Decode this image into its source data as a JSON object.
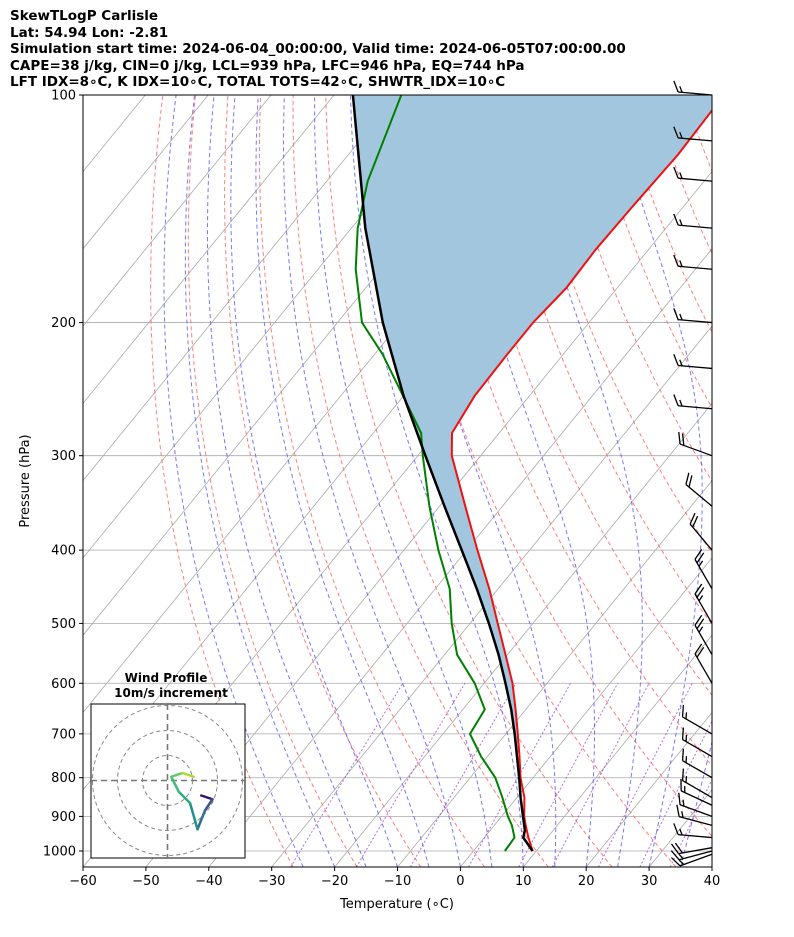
{
  "header": {
    "title": "SkewTLogP Carlisle",
    "location": "Lat: 54.94   Lon: -2.81",
    "times": "Simulation start time: 2024-06-04_00:00:00, Valid time: 2024-06-05T07:00:00.00",
    "indices1": "CAPE=38 j/kg, CIN=0 j/kg, LCL=939 hPa, LFC=946 hPa, EQ=744 hPa",
    "indices2": "LFT IDX=8∘C, K IDX=10∘C, TOTAL TOTS=42∘C, SHWTR_IDX=10∘C"
  },
  "hodograph": {
    "title": "Wind Profile",
    "subtitle": "10m/s increment"
  },
  "colors": {
    "temperature": "#ee1111",
    "dewpoint": "#008000",
    "parcel": "#000000",
    "cape_fill": "#a3c6df",
    "dry_adiabat": "#ff6666",
    "moist_adiabat": "#5555ff",
    "mixing_ratio": "#9933cc",
    "isotherm": "#aaaaaa"
  },
  "chart_data": {
    "type": "line",
    "subtype": "skew-T log-P diagram",
    "xlabel": "Temperature (∘C)",
    "ylabel": "Pressure (hPa)",
    "xlim": [
      -60,
      40
    ],
    "ylim": [
      1050,
      100
    ],
    "y_scale": "log",
    "grid": true,
    "x_ticks": [
      "−60",
      "−50",
      "−40",
      "−30",
      "−20",
      "−10",
      "0",
      "10",
      "20",
      "30",
      "40"
    ],
    "y_ticks": [
      "100",
      "200",
      "300",
      "400",
      "500",
      "600",
      "700",
      "800",
      "900",
      "1000"
    ],
    "series": [
      {
        "key": "temperature",
        "pressure": [
          1000,
          960,
          925,
          900,
          850,
          800,
          750,
          700,
          650,
          600,
          550,
          500,
          450,
          400,
          350,
          300,
          280,
          250,
          220,
          200,
          180,
          160,
          140,
          120,
          110,
          100
        ],
        "values": [
          9.4,
          7.0,
          5.0,
          3.6,
          1.2,
          -2.0,
          -4.9,
          -8.1,
          -11.6,
          -15.5,
          -20.3,
          -25.6,
          -31.4,
          -38.3,
          -45.9,
          -54.6,
          -57.5,
          -58.7,
          -58.9,
          -58.9,
          -58.1,
          -58.4,
          -58.1,
          -57.6,
          -57.8,
          -58.0
        ]
      },
      {
        "key": "dewpoint",
        "pressure": [
          1000,
          960,
          925,
          900,
          850,
          800,
          750,
          700,
          650,
          600,
          550,
          500,
          450,
          400,
          350,
          300,
          280,
          250,
          220,
          200,
          170,
          150,
          130,
          100
        ],
        "values": [
          5.0,
          4.8,
          2.8,
          1.0,
          -2.3,
          -6.0,
          -11.0,
          -15.7,
          -16.5,
          -21.5,
          -28.0,
          -32.9,
          -37.7,
          -44.5,
          -51.6,
          -59.2,
          -62.4,
          -70.1,
          -78.8,
          -86.1,
          -94.0,
          -99.0,
          -103.5,
          -109.3
        ]
      },
      {
        "key": "parcel",
        "pressure": [
          1000,
          960,
          939,
          900,
          850,
          800,
          750,
          700,
          650,
          600,
          550,
          500,
          450,
          400,
          350,
          300,
          250,
          200,
          150,
          100
        ],
        "values": [
          9.4,
          6.2,
          5.5,
          3.4,
          0.6,
          -2.2,
          -5.3,
          -8.6,
          -12.3,
          -16.6,
          -21.4,
          -27.0,
          -33.4,
          -40.8,
          -49.2,
          -58.8,
          -70.0,
          -82.8,
          -97.8,
          -117.0
        ]
      }
    ],
    "wind_barbs": {
      "pressure": [
        1010,
        1000,
        990,
        960,
        925,
        900,
        870,
        850,
        800,
        750,
        700,
        600,
        550,
        500,
        450,
        400,
        350,
        300,
        260,
        230,
        200,
        170,
        150,
        130,
        115,
        100
      ],
      "speed_kt": [
        15,
        15,
        20,
        15,
        15,
        15,
        15,
        15,
        15,
        15,
        15,
        20,
        25,
        25,
        25,
        20,
        20,
        20,
        15,
        15,
        15,
        15,
        15,
        15,
        15,
        15
      ],
      "direction_deg": [
        250,
        255,
        260,
        275,
        285,
        290,
        295,
        300,
        300,
        300,
        300,
        330,
        330,
        330,
        330,
        320,
        310,
        290,
        275,
        275,
        275,
        275,
        275,
        275,
        275,
        275
      ]
    },
    "hodograph_points": [
      {
        "u": 4.5,
        "v": -2.0
      },
      {
        "u": 6.0,
        "v": -2.5
      },
      {
        "u": 5.0,
        "v": -4.0
      },
      {
        "u": 4.0,
        "v": -6.5
      },
      {
        "u": 3.0,
        "v": -3.0
      },
      {
        "u": 1.5,
        "v": -1.5
      },
      {
        "u": 0.5,
        "v": 0.5
      },
      {
        "u": 2.0,
        "v": 1.0
      },
      {
        "u": 3.5,
        "v": 0.5
      }
    ]
  }
}
